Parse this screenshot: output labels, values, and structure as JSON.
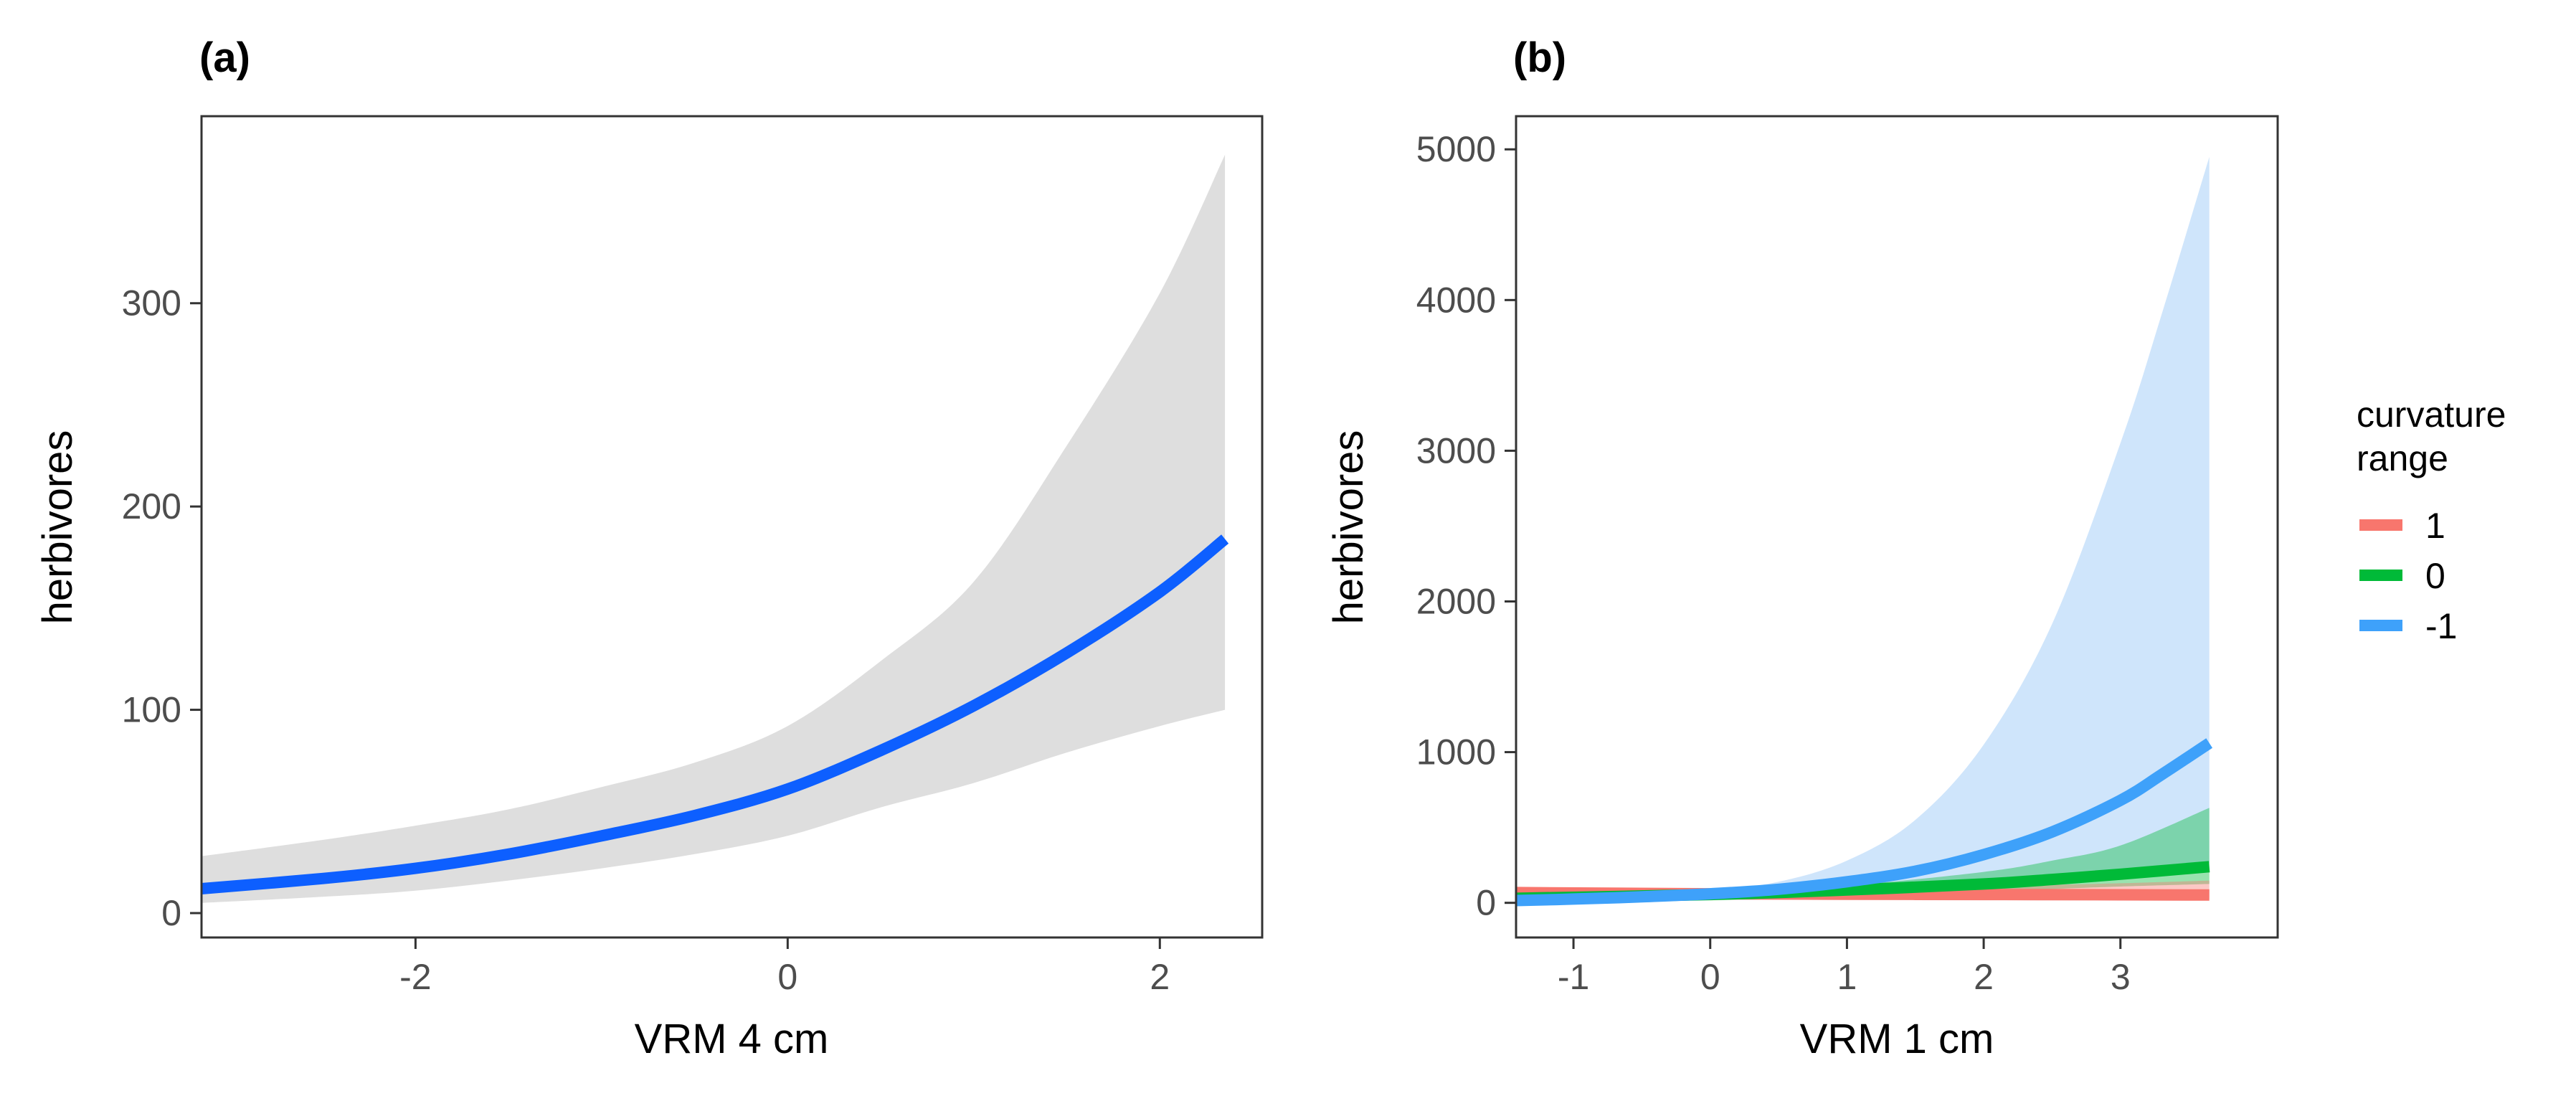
{
  "chart_data": [
    {
      "panel": "(a)",
      "type": "line",
      "title": "",
      "xlabel": "VRM 4 cm",
      "ylabel": "herbivores",
      "xlim": [
        -3.15,
        2.55
      ],
      "ylim": [
        -12,
        392
      ],
      "xticks": [
        -2,
        0,
        2
      ],
      "xtick_labels": [
        "-2",
        "0",
        "2"
      ],
      "yticks": [
        0,
        100,
        200,
        300
      ],
      "ytick_labels": [
        "0",
        "100",
        "200",
        "300"
      ],
      "grid": false,
      "series": [
        {
          "name": "fit",
          "color": "#0d5fff",
          "ribbon_color": "#dcdcdc",
          "x": [
            -3.15,
            -2.5,
            -2.0,
            -1.5,
            -1.0,
            -0.5,
            0.0,
            0.5,
            1.0,
            1.5,
            2.0,
            2.35
          ],
          "y": [
            12,
            17,
            22,
            29,
            38,
            48,
            61,
            80,
            102,
            128,
            158,
            184
          ],
          "lower": [
            5,
            8,
            11,
            16,
            22,
            29,
            38,
            52,
            64,
            79,
            92,
            100
          ],
          "upper": [
            28,
            36,
            43,
            51,
            62,
            74,
            92,
            124,
            163,
            230,
            305,
            373
          ]
        }
      ]
    },
    {
      "panel": "(b)",
      "type": "line",
      "title": "",
      "xlabel": "VRM 1 cm",
      "ylabel": "herbivores",
      "xlim": [
        -1.42,
        4.15
      ],
      "ylim": [
        -230,
        5220
      ],
      "xticks": [
        -1,
        0,
        1,
        2,
        3
      ],
      "xtick_labels": [
        "-1",
        "0",
        "1",
        "2",
        "3"
      ],
      "yticks": [
        0,
        1000,
        2000,
        3000,
        4000,
        5000
      ],
      "ytick_labels": [
        "0",
        "1000",
        "2000",
        "3000",
        "4000",
        "5000"
      ],
      "grid": false,
      "legend": {
        "title_lines": [
          "curvature",
          "range"
        ],
        "position": "right",
        "entries": [
          "1",
          "0",
          "-1"
        ]
      },
      "series": [
        {
          "name": "1",
          "color": "#f8766d",
          "ribbon_color": "#f8766d",
          "x": [
            -1.42,
            0,
            1,
            2,
            3,
            3.65
          ],
          "y": [
            68,
            60,
            57,
            55,
            53,
            52
          ],
          "lower": [
            45,
            45,
            38,
            32,
            27,
            25
          ],
          "upper": [
            95,
            75,
            90,
            110,
            130,
            148
          ]
        },
        {
          "name": "0",
          "color": "#00ba38",
          "ribbon_color": "#00ba38",
          "x": [
            -1.42,
            0,
            1,
            2,
            2.5,
            3,
            3.65
          ],
          "y": [
            30,
            55,
            85,
            125,
            155,
            190,
            240
          ],
          "lower": [
            20,
            48,
            62,
            80,
            92,
            108,
            125
          ],
          "upper": [
            42,
            64,
            115,
            205,
            280,
            380,
            630
          ]
        },
        {
          "name": "-1",
          "color": "#3ea1fa",
          "ribbon_color": "#a8d0f8",
          "x": [
            -1.42,
            -1.0,
            -0.5,
            0.0,
            0.5,
            1.0,
            1.5,
            2.0,
            2.5,
            3.0,
            3.3,
            3.65
          ],
          "y": [
            15,
            25,
            40,
            60,
            90,
            140,
            210,
            320,
            470,
            680,
            850,
            1060
          ],
          "lower": [
            8,
            15,
            28,
            45,
            60,
            80,
            105,
            135,
            170,
            210,
            235,
            265
          ],
          "upper": [
            28,
            40,
            55,
            80,
            140,
            280,
            550,
            1050,
            1850,
            3050,
            3900,
            4950
          ]
        }
      ]
    }
  ]
}
